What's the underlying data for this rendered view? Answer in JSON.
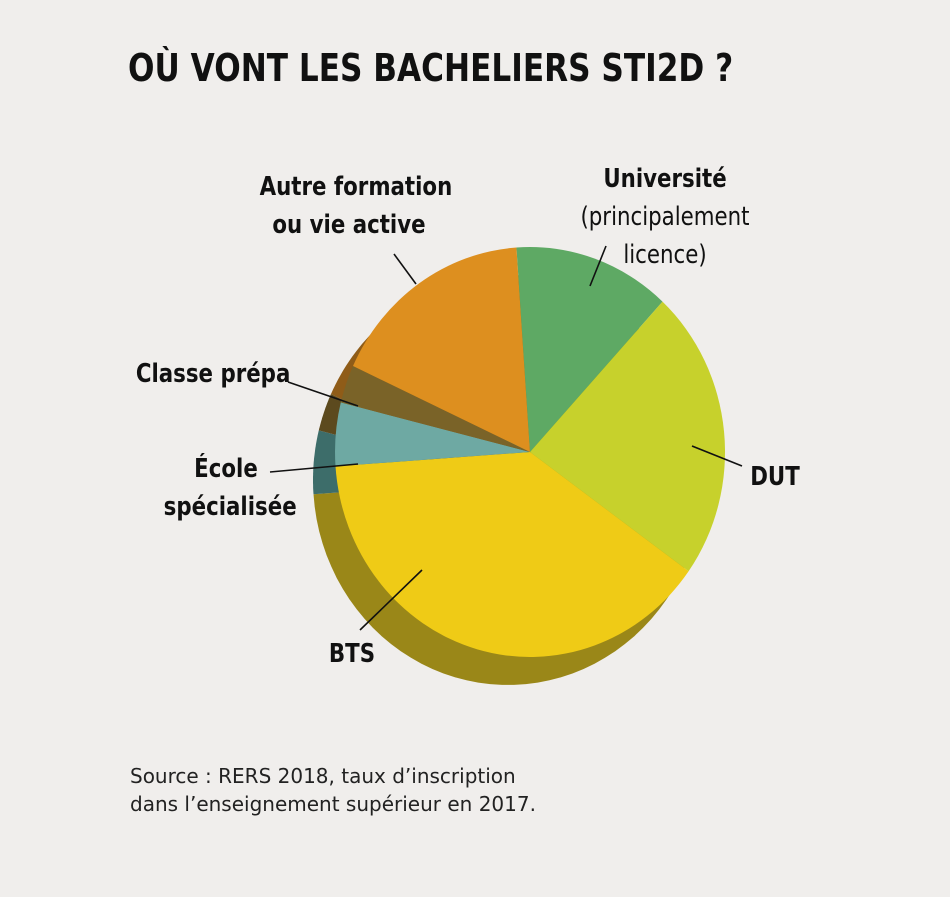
{
  "chart_data": {
    "type": "pie",
    "title": "OÙ VONT LES BACHELIERS STI2D ?",
    "slices": [
      {
        "label": "Université",
        "label_line2": "(principalement",
        "label_line3": "licence)",
        "value": 13,
        "color": "#5ea964",
        "side": "#3e7a44"
      },
      {
        "label": "DUT",
        "value": 23,
        "color": "#c7d12c",
        "side": "#8f9620"
      },
      {
        "label": "BTS",
        "value": 39,
        "color": "#efcb16",
        "side": "#9a8718"
      },
      {
        "label": "École",
        "label_line2": "spécialisée",
        "value": 5,
        "color": "#6ea9a3",
        "side": "#3d6d6a"
      },
      {
        "label": "Classe prépa",
        "value": 3,
        "color": "#7a6328",
        "side": "#5c4a1e"
      },
      {
        "label": "Autre formation",
        "label_line2": "ou vie active",
        "value": 17,
        "color": "#dd8f1f",
        "side": "#8f5c18"
      }
    ]
  },
  "source": {
    "line1": "Source : RERS 2018, taux d’inscription",
    "line2": "dans l’enseignement supérieur en 2017."
  }
}
